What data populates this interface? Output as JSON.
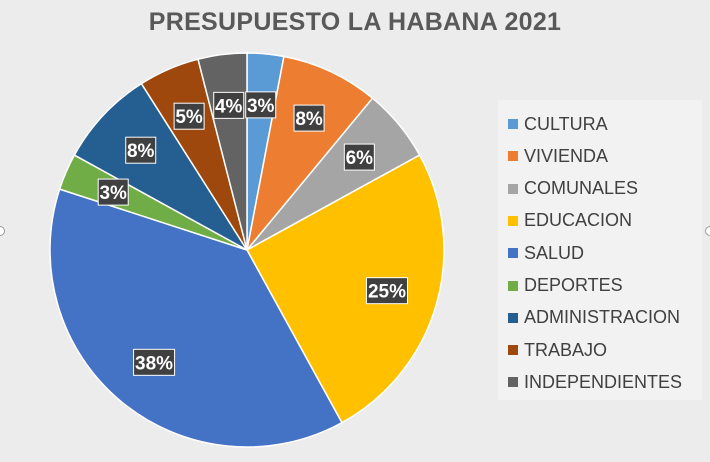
{
  "chart_data": {
    "type": "pie",
    "title": "PRESUPUESTO LA HABANA 2021",
    "categories": [
      "CULTURA",
      "VIVIENDA",
      "COMUNALES",
      "EDUCACION",
      "SALUD",
      "DEPORTES",
      "ADMINISTRACION",
      "TRABAJO",
      "INDEPENDIENTES"
    ],
    "values": [
      3,
      8,
      6,
      25,
      38,
      3,
      8,
      5,
      4
    ],
    "labels": [
      "3%",
      "8%",
      "6%",
      "25%",
      "38%",
      "3%",
      "8%",
      "5%",
      "4%"
    ],
    "colors": [
      "#5b9bd5",
      "#ed7d31",
      "#a5a5a5",
      "#ffc000",
      "#4472c4",
      "#70ad47",
      "#255e91",
      "#9e480e",
      "#636363"
    ],
    "legend_position": "right"
  }
}
